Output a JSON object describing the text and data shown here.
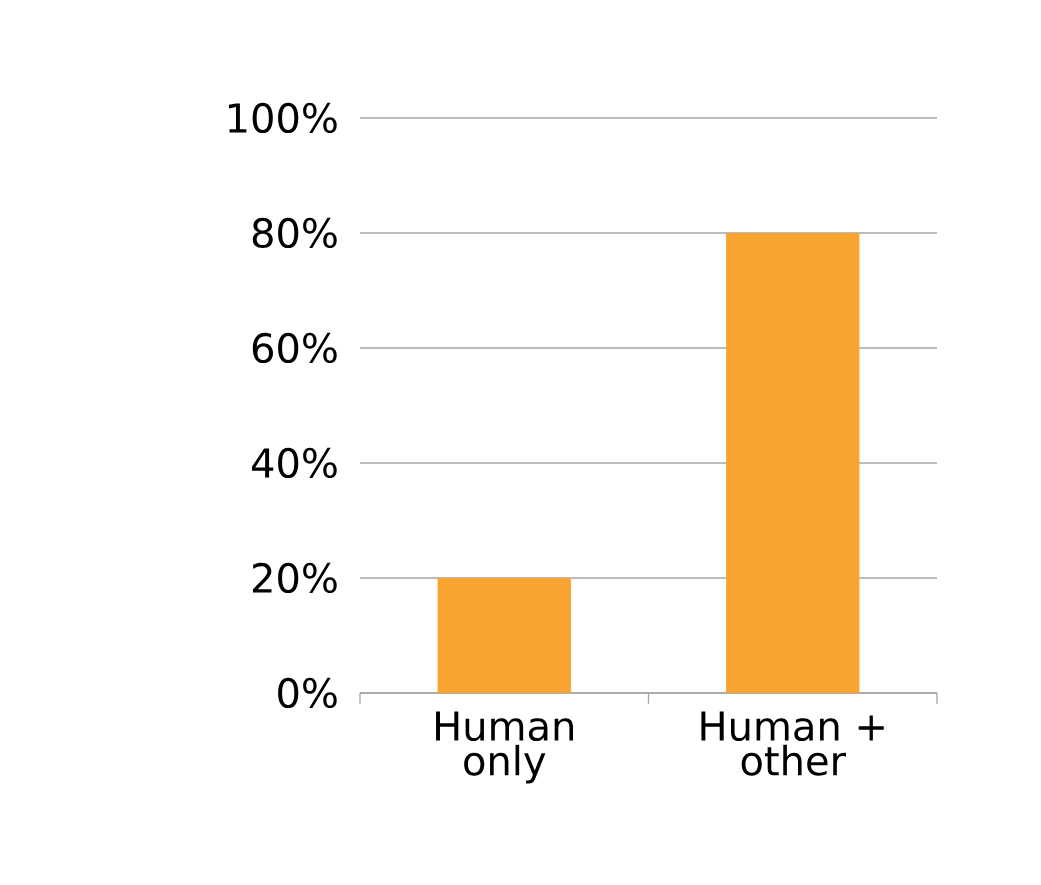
{
  "chart_data": {
    "type": "bar",
    "categories": [
      "Human only",
      "Human + other"
    ],
    "values": [
      20,
      80
    ],
    "color": "#f9a431",
    "ylim": [
      0,
      100
    ],
    "yticks": [
      {
        "value": 0,
        "label": "0%"
      },
      {
        "value": 20,
        "label": "20%"
      },
      {
        "value": 40,
        "label": "40%"
      },
      {
        "value": 60,
        "label": "60%"
      },
      {
        "value": 80,
        "label": "80%"
      },
      {
        "value": 100,
        "label": "100%"
      }
    ],
    "grid": "y"
  }
}
